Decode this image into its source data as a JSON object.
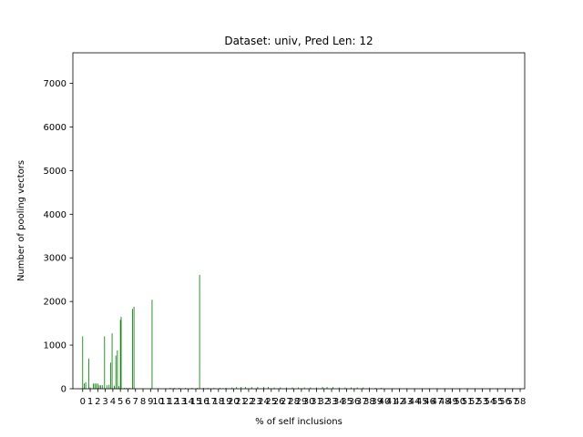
{
  "chart_data": {
    "type": "bar",
    "title": "Dataset: univ, Pred Len: 12",
    "xlabel": "% of self inclusions",
    "ylabel": "Number of pooling vectors",
    "ylim": [
      0,
      7700
    ],
    "xlim": [
      -1.3,
      58.6
    ],
    "yticks": [
      0,
      1000,
      2000,
      3000,
      4000,
      5000,
      6000,
      7000
    ],
    "xticks": [
      "0",
      "1",
      "2",
      "3",
      "4",
      "5",
      "6",
      "7",
      "8",
      "9",
      "10",
      "11",
      "12",
      "13",
      "14",
      "15",
      "16",
      "17",
      "18",
      "19",
      "20",
      "21",
      "22",
      "23",
      "24",
      "25",
      "26",
      "27",
      "28",
      "29",
      "30",
      "31",
      "32",
      "33",
      "34",
      "35",
      "36",
      "37",
      "38",
      "39",
      "40",
      "41",
      "42",
      "43",
      "44",
      "45",
      "46",
      "47",
      "48",
      "49",
      "50",
      "51",
      "52",
      "53",
      "54",
      "55",
      "56",
      "57",
      "58"
    ],
    "bar_color": "#008000",
    "bar_width": 0.1,
    "bars": [
      {
        "x": 0.0,
        "y": 1200
      },
      {
        "x": 0.2,
        "y": 120
      },
      {
        "x": 0.4,
        "y": 150
      },
      {
        "x": 0.8,
        "y": 690
      },
      {
        "x": 1.0,
        "y": 30
      },
      {
        "x": 1.4,
        "y": 120
      },
      {
        "x": 1.6,
        "y": 120
      },
      {
        "x": 1.8,
        "y": 120
      },
      {
        "x": 2.0,
        "y": 120
      },
      {
        "x": 2.2,
        "y": 80
      },
      {
        "x": 2.4,
        "y": 80
      },
      {
        "x": 2.6,
        "y": 80
      },
      {
        "x": 2.9,
        "y": 1200
      },
      {
        "x": 3.2,
        "y": 80
      },
      {
        "x": 3.5,
        "y": 90
      },
      {
        "x": 3.7,
        "y": 600
      },
      {
        "x": 3.9,
        "y": 1270
      },
      {
        "x": 4.2,
        "y": 70
      },
      {
        "x": 4.4,
        "y": 760
      },
      {
        "x": 4.6,
        "y": 880
      },
      {
        "x": 4.8,
        "y": 60
      },
      {
        "x": 5.0,
        "y": 1580
      },
      {
        "x": 5.1,
        "y": 1650
      },
      {
        "x": 5.5,
        "y": 20
      },
      {
        "x": 5.8,
        "y": 20
      },
      {
        "x": 6.2,
        "y": 20
      },
      {
        "x": 6.6,
        "y": 1830
      },
      {
        "x": 6.8,
        "y": 1880
      },
      {
        "x": 9.2,
        "y": 2040
      },
      {
        "x": 11.6,
        "y": 20
      },
      {
        "x": 12.2,
        "y": 20
      },
      {
        "x": 12.8,
        "y": 20
      },
      {
        "x": 13.6,
        "y": 20
      },
      {
        "x": 14.5,
        "y": 20
      },
      {
        "x": 15.2,
        "y": 20
      },
      {
        "x": 15.5,
        "y": 2610
      },
      {
        "x": 16.0,
        "y": 20
      },
      {
        "x": 16.6,
        "y": 20
      },
      {
        "x": 17.4,
        "y": 20
      },
      {
        "x": 18.2,
        "y": 20
      },
      {
        "x": 19.0,
        "y": 20
      },
      {
        "x": 19.8,
        "y": 30
      },
      {
        "x": 20.4,
        "y": 40
      },
      {
        "x": 21.0,
        "y": 40
      },
      {
        "x": 21.6,
        "y": 40
      },
      {
        "x": 22.4,
        "y": 40
      },
      {
        "x": 23.2,
        "y": 40
      },
      {
        "x": 24.0,
        "y": 40
      },
      {
        "x": 24.6,
        "y": 40
      },
      {
        "x": 25.4,
        "y": 30
      },
      {
        "x": 26.2,
        "y": 30
      },
      {
        "x": 27.0,
        "y": 30
      },
      {
        "x": 27.8,
        "y": 30
      },
      {
        "x": 28.6,
        "y": 30
      },
      {
        "x": 29.4,
        "y": 30
      },
      {
        "x": 30.2,
        "y": 30
      },
      {
        "x": 31.0,
        "y": 30
      },
      {
        "x": 31.8,
        "y": 40
      },
      {
        "x": 32.4,
        "y": 40
      },
      {
        "x": 33.2,
        "y": 40
      },
      {
        "x": 34.0,
        "y": 30
      },
      {
        "x": 34.8,
        "y": 30
      },
      {
        "x": 35.6,
        "y": 30
      },
      {
        "x": 36.4,
        "y": 30
      },
      {
        "x": 37.2,
        "y": 30
      },
      {
        "x": 38.0,
        "y": 30
      },
      {
        "x": 38.8,
        "y": 20
      },
      {
        "x": 39.6,
        "y": 20
      },
      {
        "x": 40.4,
        "y": 10
      },
      {
        "x": 41.2,
        "y": 10
      },
      {
        "x": 42.0,
        "y": 10
      },
      {
        "x": 43.0,
        "y": 10
      },
      {
        "x": 44.0,
        "y": 10
      },
      {
        "x": 45.0,
        "y": 10
      },
      {
        "x": 46.0,
        "y": 10
      },
      {
        "x": 47.0,
        "y": 10
      },
      {
        "x": 48.0,
        "y": 10
      },
      {
        "x": 49.0,
        "y": 10
      },
      {
        "x": 50.0,
        "y": 10
      },
      {
        "x": 51.0,
        "y": 10
      },
      {
        "x": 52.0,
        "y": 10
      },
      {
        "x": 53.0,
        "y": 10
      },
      {
        "x": 54.0,
        "y": 10
      },
      {
        "x": 55.0,
        "y": 10
      },
      {
        "x": 56.0,
        "y": 10
      },
      {
        "x": 57.0,
        "y": 10
      },
      {
        "x": 58.0,
        "y": 10
      }
    ]
  }
}
